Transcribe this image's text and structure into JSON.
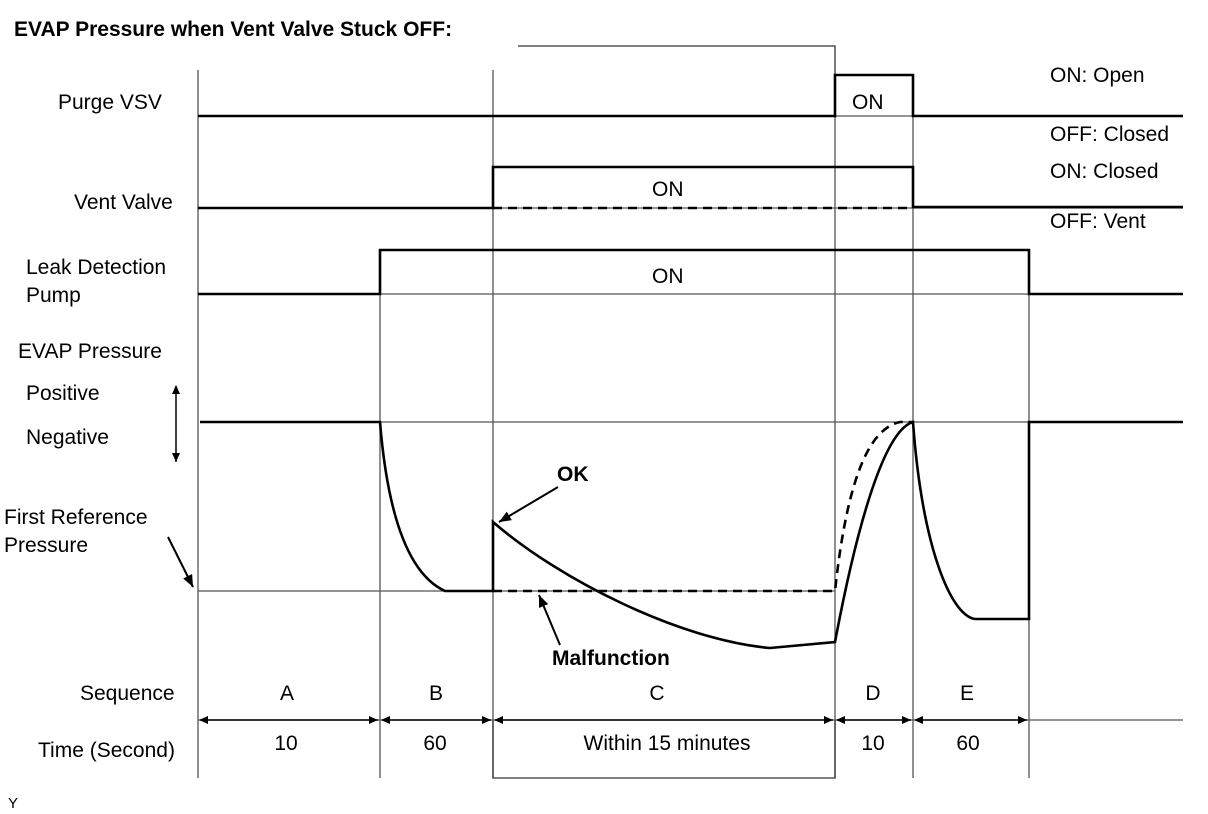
{
  "title": "EVAP Pressure when Vent Valve Stuck OFF:",
  "rows": {
    "purge_vsv": "Purge VSV",
    "vent_valve": "Vent Valve",
    "leak_pump_line1": "Leak Detection",
    "leak_pump_line2": "Pump",
    "evap_pressure": "EVAP Pressure",
    "positive": "Positive",
    "negative": "Negative",
    "first_ref_line1": "First Reference",
    "first_ref_line2": "Pressure"
  },
  "states": {
    "purge_on": "ON: Open",
    "purge_off": "OFF: Closed",
    "vent_on": "ON: Closed",
    "vent_off": "OFF: Vent"
  },
  "signal_labels": {
    "purge_on": "ON",
    "vent_on": "ON",
    "pump_on": "ON"
  },
  "annotations": {
    "ok": "OK",
    "malfunction": "Malfunction"
  },
  "sequence": {
    "label": "Sequence",
    "steps": [
      "A",
      "B",
      "C",
      "D",
      "E"
    ]
  },
  "time": {
    "label": "Time (Second)",
    "values": [
      "10",
      "60",
      "Within 15 minutes",
      "10",
      "60"
    ]
  },
  "footer_mark": "Y"
}
